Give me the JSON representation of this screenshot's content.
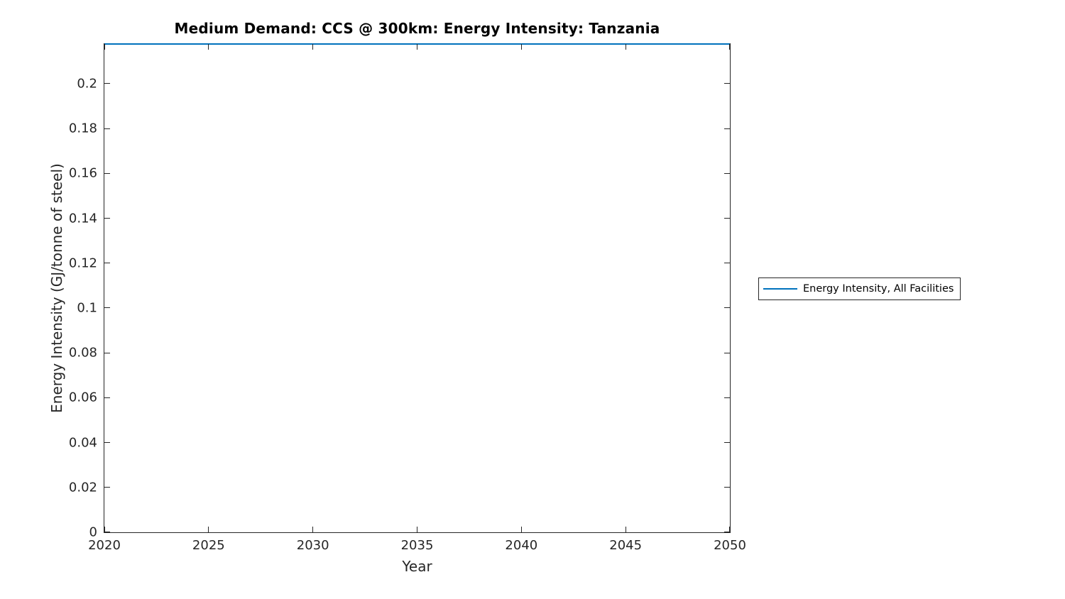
{
  "figure": {
    "background": "#ffffff",
    "axis_color": "#262626",
    "line_color": "#0072BD"
  },
  "chart_data": {
    "type": "line",
    "title": "Medium Demand: CCS @ 300km: Energy Intensity: Tanzania",
    "xlabel": "Year",
    "ylabel": "Energy Intensity (GJ/tonne of steel)",
    "xlim": [
      2020,
      2050
    ],
    "ylim": [
      0,
      0.2177
    ],
    "xticks": [
      2020,
      2025,
      2030,
      2035,
      2040,
      2045,
      2050
    ],
    "xtick_labels": [
      "2020",
      "2025",
      "2030",
      "2035",
      "2040",
      "2045",
      "2050"
    ],
    "yticks": [
      0,
      0.02,
      0.04,
      0.06,
      0.08,
      0.1,
      0.12,
      0.14,
      0.16,
      0.18,
      0.2
    ],
    "ytick_labels": [
      "0",
      "0.02",
      "0.04",
      "0.06",
      "0.08",
      "0.1",
      "0.12",
      "0.14",
      "0.16",
      "0.18",
      "0.2"
    ],
    "grid": false,
    "box": true,
    "legend": {
      "position": "outside-right",
      "entries": [
        {
          "label": "Energy Intensity, All Facilities",
          "color": "#0072BD"
        }
      ]
    },
    "series": [
      {
        "name": "Energy Intensity, All Facilities",
        "color": "#0072BD",
        "x": [
          2020,
          2050
        ],
        "values": [
          0.2177,
          0.2177
        ],
        "note": "constant horizontal line rendered at the top edge of the axes; value estimated from pixel position"
      }
    ]
  }
}
